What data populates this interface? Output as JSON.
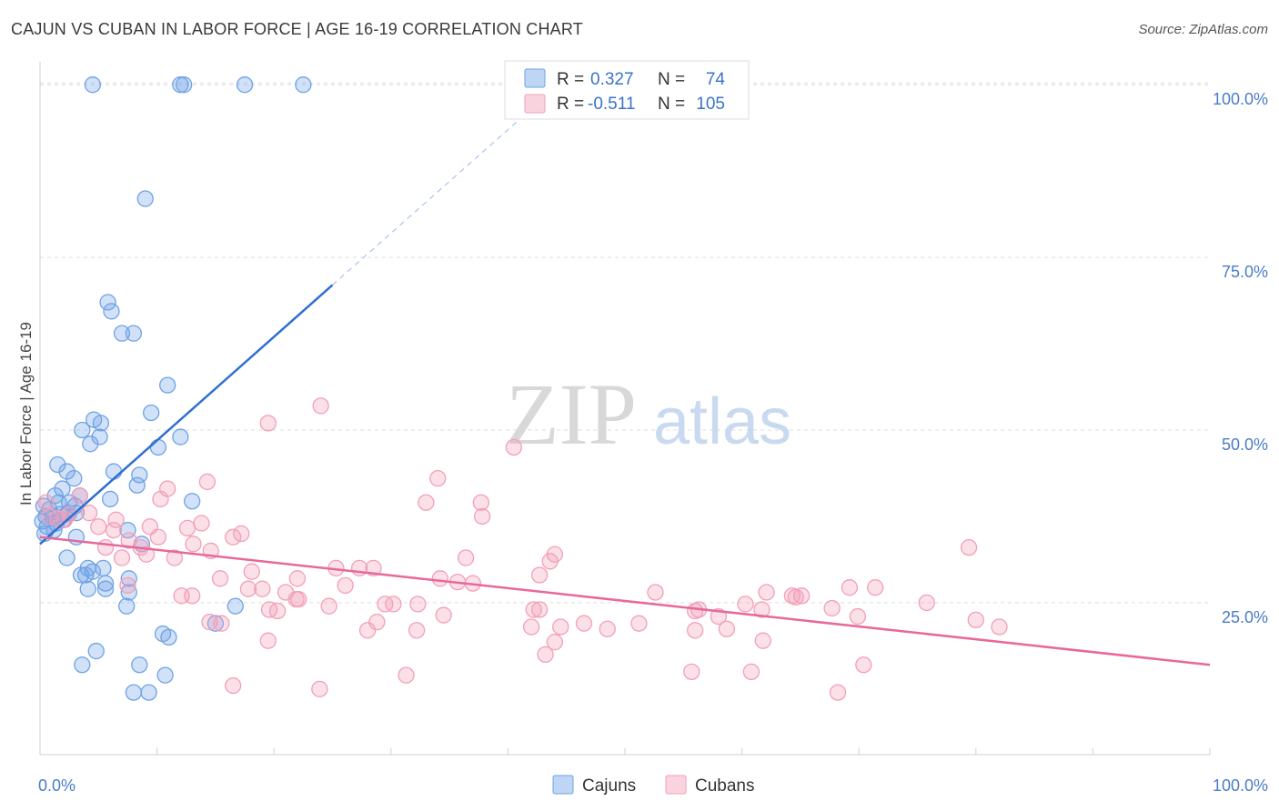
{
  "header": {
    "title": "CAJUN VS CUBAN IN LABOR FORCE | AGE 16-19 CORRELATION CHART",
    "source": "Source: ZipAtlas.com"
  },
  "watermark": {
    "zip": "ZIP",
    "atlas": "atlas"
  },
  "legend": {
    "r_label": "R =",
    "n_label": "N =",
    "rows": [
      {
        "r": "0.327",
        "n": "74"
      },
      {
        "r": "-0.511",
        "n": "105"
      }
    ]
  },
  "chart_data": {
    "type": "scatter",
    "title": "CAJUN VS CUBAN IN LABOR FORCE | AGE 16-19 CORRELATION CHART",
    "xlabel": "",
    "ylabel": "In Labor Force | Age 16-19",
    "xlim": [
      0,
      100
    ],
    "ylim": [
      3,
      102
    ],
    "x_tick_labels": [
      "0.0%",
      "100.0%"
    ],
    "y_ticks": [
      25,
      50,
      75,
      100
    ],
    "y_tick_labels": [
      "25.0%",
      "50.0%",
      "75.0%",
      "100.0%"
    ],
    "grid": true,
    "legend_position": "top-center",
    "series": [
      {
        "name": "Cajuns",
        "color": "#6fa3e6",
        "line_color": "#2e6fd0",
        "trend": {
          "x0": 0,
          "y0": 33.5,
          "x1": 25,
          "y1": 71,
          "dash_to_x": 46
        },
        "points": [
          [
            4.5,
            100
          ],
          [
            12.0,
            100
          ],
          [
            12.3,
            100
          ],
          [
            17.5,
            100
          ],
          [
            22.5,
            100
          ],
          [
            9.0,
            83.5
          ],
          [
            5.8,
            68.5
          ],
          [
            6.1,
            67.2
          ],
          [
            7.0,
            64
          ],
          [
            8.0,
            64
          ],
          [
            10.9,
            56.5
          ],
          [
            9.5,
            52.5
          ],
          [
            4.6,
            51.5
          ],
          [
            5.2,
            51
          ],
          [
            3.6,
            50
          ],
          [
            5.1,
            49
          ],
          [
            4.3,
            48
          ],
          [
            12.0,
            49
          ],
          [
            10.1,
            47.5
          ],
          [
            1.5,
            45
          ],
          [
            2.3,
            44
          ],
          [
            6.3,
            44
          ],
          [
            8.5,
            43.5
          ],
          [
            2.9,
            43
          ],
          [
            8.3,
            42
          ],
          [
            1.9,
            41.5
          ],
          [
            1.3,
            40.5
          ],
          [
            3.4,
            40.5
          ],
          [
            6.0,
            40
          ],
          [
            13.0,
            39.7
          ],
          [
            1.6,
            39.5
          ],
          [
            2.5,
            39.5
          ],
          [
            3.0,
            39
          ],
          [
            0.3,
            39
          ],
          [
            0.8,
            38.5
          ],
          [
            3.1,
            38
          ],
          [
            2.4,
            38
          ],
          [
            1.7,
            37.8
          ],
          [
            0.5,
            37.5
          ],
          [
            1.1,
            37.2
          ],
          [
            2.0,
            37.0
          ],
          [
            0.2,
            36.8
          ],
          [
            1.4,
            36.5
          ],
          [
            0.6,
            36
          ],
          [
            1.2,
            35.5
          ],
          [
            0.4,
            35
          ],
          [
            3.1,
            34.5
          ],
          [
            7.5,
            35.5
          ],
          [
            8.7,
            33.5
          ],
          [
            2.3,
            31.5
          ],
          [
            4.1,
            30
          ],
          [
            5.4,
            30
          ],
          [
            4.5,
            29.5
          ],
          [
            3.9,
            29
          ],
          [
            3.5,
            29
          ],
          [
            7.6,
            28.5
          ],
          [
            5.6,
            27.8
          ],
          [
            4.1,
            27
          ],
          [
            5.6,
            27
          ],
          [
            7.6,
            26.5
          ],
          [
            7.4,
            24.5
          ],
          [
            16.7,
            24.5
          ],
          [
            15.0,
            22
          ],
          [
            10.5,
            20.5
          ],
          [
            11.0,
            20
          ],
          [
            4.8,
            18
          ],
          [
            3.6,
            16
          ],
          [
            8.5,
            16
          ],
          [
            10.7,
            14.5
          ],
          [
            8.0,
            12
          ],
          [
            9.3,
            12
          ]
        ]
      },
      {
        "name": "Cubans",
        "color": "#f29fb8",
        "line_color": "#e8689a",
        "trend": {
          "x0": 0,
          "y0": 34.5,
          "x1": 100,
          "y1": 16
        },
        "points": [
          [
            24.0,
            53.5
          ],
          [
            19.5,
            51
          ],
          [
            40.5,
            47.5
          ],
          [
            34.0,
            43
          ],
          [
            10.9,
            41.5
          ],
          [
            14.3,
            42.5
          ],
          [
            3.4,
            40.5
          ],
          [
            10.3,
            40
          ],
          [
            33.0,
            39.5
          ],
          [
            37.7,
            39.5
          ],
          [
            0.5,
            39.5
          ],
          [
            4.2,
            38
          ],
          [
            0.8,
            37.5
          ],
          [
            2.5,
            37.8
          ],
          [
            1.5,
            37.2
          ],
          [
            2.1,
            37
          ],
          [
            6.5,
            37
          ],
          [
            13.8,
            36.5
          ],
          [
            37.8,
            37.5
          ],
          [
            5.0,
            36
          ],
          [
            9.4,
            36
          ],
          [
            12.6,
            35.8
          ],
          [
            6.3,
            35.5
          ],
          [
            10.1,
            34.5
          ],
          [
            16.5,
            34.5
          ],
          [
            17.2,
            35
          ],
          [
            7.6,
            34
          ],
          [
            13.1,
            33.5
          ],
          [
            5.6,
            33
          ],
          [
            8.6,
            33
          ],
          [
            14.6,
            32.5
          ],
          [
            9.1,
            32
          ],
          [
            11.5,
            31.5
          ],
          [
            36.4,
            31.5
          ],
          [
            44.0,
            32
          ],
          [
            43.6,
            31
          ],
          [
            7.0,
            31.5
          ],
          [
            79.4,
            33
          ],
          [
            25.3,
            30
          ],
          [
            27.3,
            30
          ],
          [
            28.5,
            30
          ],
          [
            42.7,
            29
          ],
          [
            22.0,
            28.5
          ],
          [
            18.1,
            29.5
          ],
          [
            15.4,
            28.5
          ],
          [
            34.2,
            28.5
          ],
          [
            35.7,
            28
          ],
          [
            37.0,
            27.8
          ],
          [
            26.1,
            27.5
          ],
          [
            17.8,
            27
          ],
          [
            19.0,
            27
          ],
          [
            69.2,
            27.2
          ],
          [
            71.4,
            27.2
          ],
          [
            62.1,
            26.5
          ],
          [
            21.0,
            26.5
          ],
          [
            21.9,
            25.5
          ],
          [
            22.1,
            25.5
          ],
          [
            13.0,
            26
          ],
          [
            12.1,
            26
          ],
          [
            7.5,
            27.5
          ],
          [
            64.3,
            26
          ],
          [
            65.1,
            26
          ],
          [
            64.6,
            25.8
          ],
          [
            52.6,
            26.5
          ],
          [
            75.8,
            25
          ],
          [
            60.3,
            24.8
          ],
          [
            61.7,
            24
          ],
          [
            29.5,
            24.8
          ],
          [
            30.2,
            24.8
          ],
          [
            32.3,
            24.8
          ],
          [
            24.7,
            24.5
          ],
          [
            19.6,
            24
          ],
          [
            20.3,
            23.8
          ],
          [
            42.7,
            24
          ],
          [
            42.2,
            24
          ],
          [
            56.3,
            24
          ],
          [
            56.0,
            23.8
          ],
          [
            67.7,
            24.2
          ],
          [
            58.0,
            23
          ],
          [
            69.9,
            23
          ],
          [
            80.0,
            22.5
          ],
          [
            34.5,
            23.2
          ],
          [
            28.8,
            22.2
          ],
          [
            46.5,
            22
          ],
          [
            51.2,
            22
          ],
          [
            15.5,
            22
          ],
          [
            44.5,
            21.5
          ],
          [
            42.0,
            21.5
          ],
          [
            48.5,
            21.2
          ],
          [
            56.0,
            21
          ],
          [
            58.7,
            21.2
          ],
          [
            82.0,
            21.5
          ],
          [
            14.5,
            22.2
          ],
          [
            32.2,
            21
          ],
          [
            28.0,
            21
          ],
          [
            19.5,
            19.5
          ],
          [
            44.0,
            19.3
          ],
          [
            61.8,
            19.5
          ],
          [
            55.7,
            15
          ],
          [
            43.2,
            17.5
          ],
          [
            70.4,
            16
          ],
          [
            31.3,
            14.5
          ],
          [
            60.8,
            15
          ],
          [
            16.5,
            13
          ],
          [
            23.9,
            12.5
          ],
          [
            68.2,
            12
          ]
        ]
      }
    ]
  }
}
